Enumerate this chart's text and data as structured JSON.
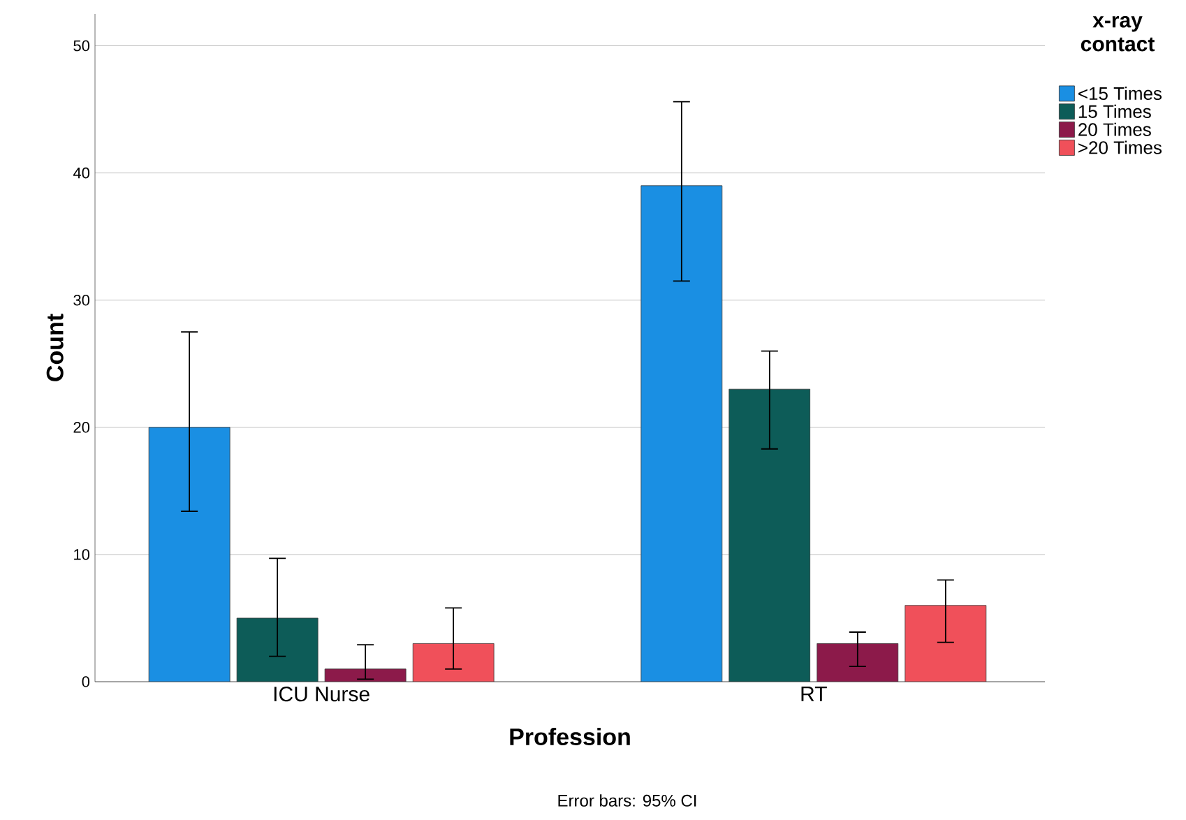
{
  "chart_data": {
    "type": "bar",
    "xlabel": "Profession",
    "ylabel": "Count",
    "legend_title": "x-ray contact",
    "categories": [
      "ICU Nurse",
      "RT"
    ],
    "series": [
      {
        "name": "<15 Times",
        "color": "#1a8fe3",
        "values": [
          20,
          39
        ],
        "errors": [
          [
            13.4,
            27.5
          ],
          [
            31.5,
            45.6
          ]
        ]
      },
      {
        "name": "15 Times",
        "color": "#0d5c58",
        "values": [
          5,
          23
        ],
        "errors": [
          [
            2.0,
            9.7
          ],
          [
            18.3,
            26.0
          ]
        ]
      },
      {
        "name": "20 Times",
        "color": "#8c1a4a",
        "values": [
          1,
          3
        ],
        "errors": [
          [
            0.2,
            2.9
          ],
          [
            1.2,
            3.9
          ]
        ]
      },
      {
        "name": ">20 Times",
        "color": "#f0505a",
        "values": [
          3,
          6
        ],
        "errors": [
          [
            1.0,
            5.8
          ],
          [
            3.1,
            8.0
          ]
        ]
      }
    ],
    "ylim": [
      0,
      52.5
    ],
    "yticks": [
      0,
      10,
      20,
      30,
      40,
      50
    ],
    "grid": "y",
    "legend": "top right",
    "annotations": [
      "Error bars: 95% CI"
    ]
  }
}
